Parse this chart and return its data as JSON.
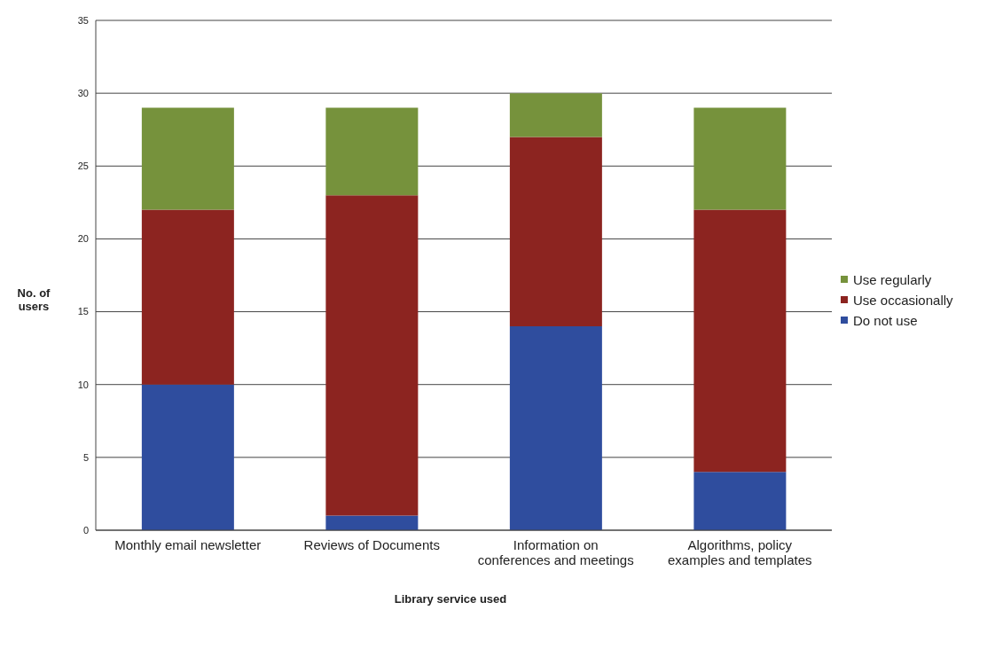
{
  "chart_data": {
    "type": "bar",
    "stacked": true,
    "ylabel": "No. of users",
    "xlabel": "Library service used",
    "categories": [
      "Monthly email newsletter",
      "Reviews of Documents",
      "Information on conferences and meetings",
      "Algorithms, policy examples and templates"
    ],
    "series": [
      {
        "name": "Do not use",
        "color": "#2f4d9e",
        "values": [
          10,
          1,
          14,
          4
        ]
      },
      {
        "name": "Use occasionally",
        "color": "#8c2420",
        "values": [
          12,
          22,
          13,
          18
        ]
      },
      {
        "name": "Use regularly",
        "color": "#76923c",
        "values": [
          7,
          6,
          3,
          7
        ]
      }
    ],
    "ylim": [
      0,
      35
    ],
    "yticks": [
      0,
      5,
      10,
      15,
      20,
      25,
      30,
      35
    ],
    "grid": "y",
    "legend": "right"
  }
}
